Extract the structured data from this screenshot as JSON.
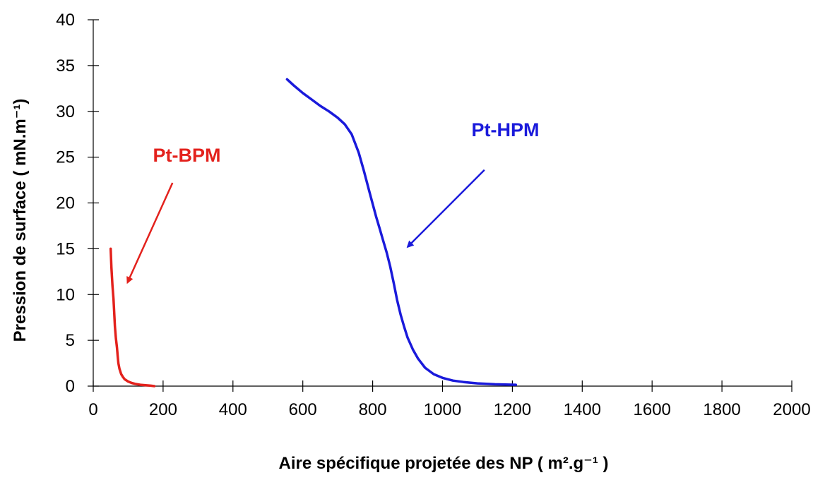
{
  "chart_data": {
    "type": "line",
    "title": "",
    "xlabel": "Aire spécifique projetée des NP ( m².g⁻¹ )",
    "ylabel": "Pression de surface ( mN.m⁻¹)",
    "xlim": [
      0,
      2000
    ],
    "ylim": [
      0,
      40
    ],
    "xticks": [
      0,
      200,
      400,
      600,
      800,
      1000,
      1200,
      1400,
      1600,
      1800,
      2000
    ],
    "yticks": [
      0,
      5,
      10,
      15,
      20,
      25,
      30,
      35,
      40
    ],
    "grid": false,
    "legend": "none",
    "series": [
      {
        "name": "Pt-BPM",
        "color": "#e3211c",
        "x": [
          50,
          52,
          55,
          58,
          60,
          62,
          65,
          68,
          70,
          72,
          75,
          80,
          85,
          90,
          100,
          110,
          120,
          135,
          150,
          165,
          175
        ],
        "y": [
          15,
          13,
          11,
          9.5,
          8,
          6.5,
          5.2,
          4.2,
          3.3,
          2.5,
          1.9,
          1.3,
          1.0,
          0.75,
          0.5,
          0.35,
          0.25,
          0.15,
          0.1,
          0.05,
          0.0
        ]
      },
      {
        "name": "Pt-HPM",
        "color": "#1a1adb",
        "x": [
          555,
          575,
          600,
          625,
          650,
          675,
          700,
          720,
          740,
          760,
          775,
          790,
          800,
          810,
          820,
          830,
          840,
          850,
          860,
          870,
          880,
          890,
          900,
          915,
          930,
          950,
          975,
          1000,
          1030,
          1060,
          1100,
          1150,
          1210
        ],
        "y": [
          33.5,
          32.8,
          32.0,
          31.3,
          30.6,
          30.0,
          29.3,
          28.6,
          27.5,
          25.5,
          23.5,
          21.3,
          19.9,
          18.5,
          17.2,
          15.9,
          14.6,
          13.1,
          11.3,
          9.4,
          7.8,
          6.5,
          5.3,
          4.0,
          3.0,
          2.0,
          1.3,
          0.9,
          0.6,
          0.45,
          0.3,
          0.2,
          0.15
        ]
      }
    ],
    "annotations": [
      {
        "name": "label-pt-bpm",
        "text": "Pt-BPM",
        "color": "#e3211c",
        "text_x": 268,
        "text_y": 24.5,
        "arrow_from": [
          227,
          22.2
        ],
        "arrow_to": [
          98,
          11.3
        ]
      },
      {
        "name": "label-pt-hpm",
        "text": "Pt-HPM",
        "color": "#1a1adb",
        "text_x": 1180,
        "text_y": 27.3,
        "arrow_from": [
          1120,
          23.6
        ],
        "arrow_to": [
          900,
          15.2
        ]
      }
    ]
  }
}
